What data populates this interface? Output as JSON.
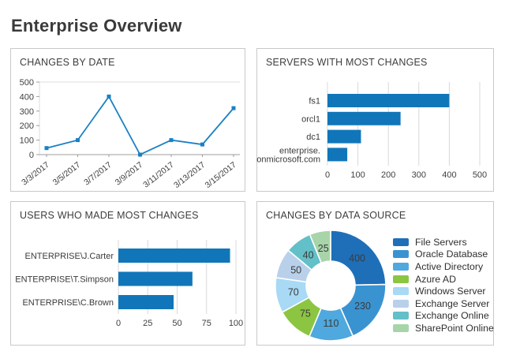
{
  "page": {
    "title": "Enterprise Overview"
  },
  "chart_data": [
    {
      "id": "changes-by-date",
      "type": "line",
      "title": "CHANGES BY DATE",
      "x": [
        "3/3/2017",
        "3/5/2017",
        "3/7/2017",
        "3/9/2017",
        "3/11/2017",
        "3/13/2017",
        "3/15/2017"
      ],
      "values": [
        45,
        100,
        400,
        0,
        100,
        70,
        320
      ],
      "ylim": [
        0,
        500
      ],
      "yticks": [
        0,
        100,
        200,
        300,
        400,
        500
      ],
      "line_color": "#1b80c4",
      "marker": "square",
      "grid": "off"
    },
    {
      "id": "servers-with-most-changes",
      "type": "bar",
      "orientation": "horizontal",
      "title": "SERVERS WITH MOST CHANGES",
      "categories": [
        "fs1",
        "orcl1",
        "dc1",
        "enterprise.\nonmicrosoft.com"
      ],
      "values": [
        400,
        240,
        110,
        65
      ],
      "xlim": [
        0,
        500
      ],
      "xticks": [
        0,
        100,
        200,
        300,
        400,
        500
      ],
      "bar_color": "#1176b9",
      "grid": "vertical"
    },
    {
      "id": "users-who-made-most-changes",
      "type": "bar",
      "orientation": "horizontal",
      "title": "USERS WHO MADE MOST CHANGES",
      "categories": [
        "ENTERPRISE\\J.Carter",
        "ENTERPRISE\\T.Simpson",
        "ENTERPRISE\\C.Brown"
      ],
      "values": [
        95,
        63,
        47
      ],
      "xlim": [
        0,
        100
      ],
      "xticks": [
        0,
        25,
        50,
        75,
        100
      ],
      "bar_color": "#1176b9",
      "grid": "vertical"
    },
    {
      "id": "changes-by-data-source",
      "type": "donut",
      "title": "CHANGES BY DATA SOURCE",
      "angle_scale": "sqrt",
      "legend_position": "right",
      "slices": [
        {
          "label": "File Servers",
          "value": 400,
          "color": "#1e6fb8"
        },
        {
          "label": "Oracle Database",
          "value": 230,
          "color": "#3a93d1"
        },
        {
          "label": "Active Directory",
          "value": 110,
          "color": "#4fa8de"
        },
        {
          "label": "Azure AD",
          "value": 75,
          "color": "#8cc541"
        },
        {
          "label": "Windows Server",
          "value": 70,
          "color": "#a8d9f5"
        },
        {
          "label": "Exchange Server",
          "value": 50,
          "color": "#b9d0ea"
        },
        {
          "label": "Exchange Online",
          "value": 40,
          "color": "#63c0c8"
        },
        {
          "label": "SharePoint Online",
          "value": 25,
          "color": "#a7d5a9"
        }
      ]
    }
  ]
}
